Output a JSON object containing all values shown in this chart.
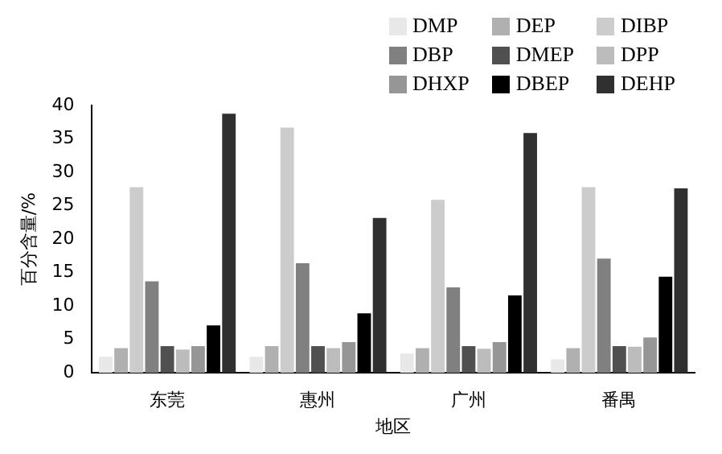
{
  "chart_data": {
    "type": "bar",
    "xlabel": "地区",
    "ylabel": "百分含量/%",
    "categories": [
      "东莞",
      "惠州",
      "广州",
      "番禺"
    ],
    "series": [
      {
        "name": "DMP",
        "color": "#e8e8e8",
        "values": [
          2.4,
          2.4,
          2.9,
          2.0
        ]
      },
      {
        "name": "DEP",
        "color": "#b0b0b0",
        "values": [
          3.7,
          4.0,
          3.7,
          3.7
        ]
      },
      {
        "name": "DIBP",
        "color": "#cccccc",
        "values": [
          27.8,
          36.7,
          25.9,
          27.8
        ]
      },
      {
        "name": "DBP",
        "color": "#808080",
        "values": [
          13.7,
          16.4,
          12.8,
          17.1
        ]
      },
      {
        "name": "DMEP",
        "color": "#505050",
        "values": [
          4.0,
          4.0,
          4.0,
          4.0
        ]
      },
      {
        "name": "DPP",
        "color": "#bcbcbc",
        "values": [
          3.5,
          3.7,
          3.6,
          3.9
        ]
      },
      {
        "name": "DHXP",
        "color": "#969696",
        "values": [
          4.0,
          4.6,
          4.6,
          5.3
        ]
      },
      {
        "name": "DBEP",
        "color": "#000000",
        "values": [
          7.1,
          8.9,
          11.6,
          14.4
        ]
      },
      {
        "name": "DEHP",
        "color": "#303030",
        "values": [
          38.8,
          23.2,
          35.9,
          27.6
        ]
      }
    ],
    "ylim": [
      0,
      40
    ],
    "yticks": [
      0,
      5,
      10,
      15,
      20,
      25,
      30,
      35,
      40
    ],
    "grid": false,
    "legend": "top right"
  }
}
